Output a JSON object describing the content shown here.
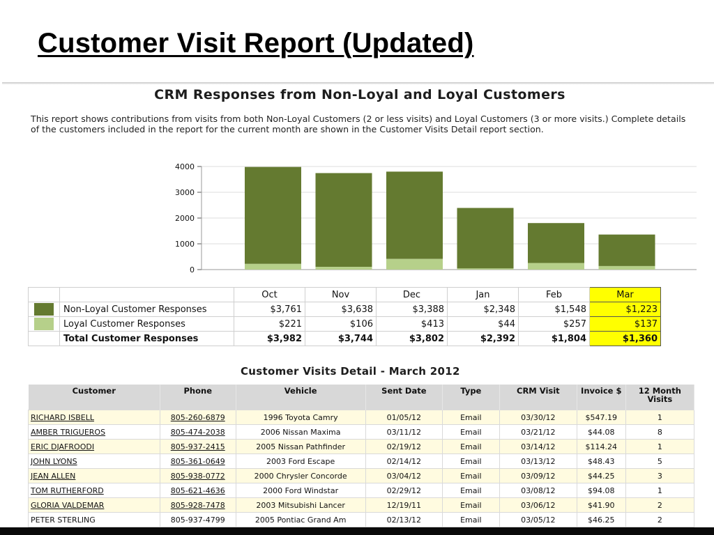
{
  "slide": {
    "title": "Customer Visit Report (Updated)"
  },
  "report": {
    "heading": "CRM Responses from Non-Loyal and Loyal Customers",
    "description": "This report shows contributions from visits from both Non-Loyal Customers (2 or less visits) and Loyal Customers (3 or more visits.) Complete details of the customers included in the report for the current month are shown in the Customer Visits Detail report section."
  },
  "colors": {
    "non_loyal": "#647a30",
    "loyal": "#b6d08a",
    "highlight": "#ffff00"
  },
  "chart_data": {
    "type": "bar",
    "stacked": true,
    "categories": [
      "Oct",
      "Nov",
      "Dec",
      "Jan",
      "Feb",
      "Mar"
    ],
    "series": [
      {
        "name": "Loyal Customer Responses",
        "values": [
          221,
          106,
          413,
          44,
          257,
          137
        ]
      },
      {
        "name": "Non-Loyal Customer Responses",
        "values": [
          3761,
          3638,
          3388,
          2348,
          1548,
          1223
        ]
      }
    ],
    "yticks": [
      "0",
      "1000",
      "2000",
      "3000",
      "4000"
    ],
    "ylim": [
      0,
      4000
    ],
    "grid": true
  },
  "summary": {
    "months": [
      "Oct",
      "Nov",
      "Dec",
      "Jan",
      "Feb",
      "Mar"
    ],
    "rows": [
      {
        "label": "Non-Loyal Customer Responses",
        "values": [
          "$3,761",
          "$3,638",
          "$3,388",
          "$2,348",
          "$1,548",
          "$1,223"
        ]
      },
      {
        "label": "Loyal Customer Responses",
        "values": [
          "$221",
          "$106",
          "$413",
          "$44",
          "$257",
          "$137"
        ]
      },
      {
        "label": "Total Customer Responses",
        "values": [
          "$3,982",
          "$3,744",
          "$3,802",
          "$2,392",
          "$1,804",
          "$1,360"
        ]
      }
    ]
  },
  "detail": {
    "heading": "Customer Visits Detail - March 2012",
    "columns": [
      "Customer",
      "Phone",
      "Vehicle",
      "Sent Date",
      "Type",
      "CRM Visit",
      "Invoice $",
      "12 Month Visits"
    ],
    "rows": [
      [
        "RICHARD ISBELL",
        "805-260-6879",
        "1996 Toyota Camry",
        "01/05/12",
        "Email",
        "03/30/12",
        "$547.19",
        "1"
      ],
      [
        "AMBER TRIGUEROS",
        "805-474-2038",
        "2006 Nissan Maxima",
        "03/11/12",
        "Email",
        "03/21/12",
        "$44.08",
        "8"
      ],
      [
        "ERIC DJAFROODI",
        "805-937-2415",
        "2005 Nissan Pathfinder",
        "02/19/12",
        "Email",
        "03/14/12",
        "$114.24",
        "1"
      ],
      [
        "JOHN LYONS",
        "805-361-0649",
        "2003 Ford Escape",
        "02/14/12",
        "Email",
        "03/13/12",
        "$48.43",
        "5"
      ],
      [
        "JEAN ALLEN",
        "805-938-0772",
        "2000 Chrysler Concorde",
        "03/04/12",
        "Email",
        "03/09/12",
        "$44.25",
        "3"
      ],
      [
        "TOM RUTHERFORD",
        "805-621-4636",
        "2000 Ford Windstar",
        "02/29/12",
        "Email",
        "03/08/12",
        "$94.08",
        "1"
      ],
      [
        "GLORIA VALDEMAR",
        "805-928-7478",
        "2003 Mitsubishi Lancer",
        "12/19/11",
        "Email",
        "03/06/12",
        "$41.90",
        "2"
      ],
      [
        "PETER STERLING",
        "805-937-4799",
        "2005 Pontiac Grand Am",
        "02/13/12",
        "Email",
        "03/05/12",
        "$46.25",
        "2"
      ]
    ]
  }
}
